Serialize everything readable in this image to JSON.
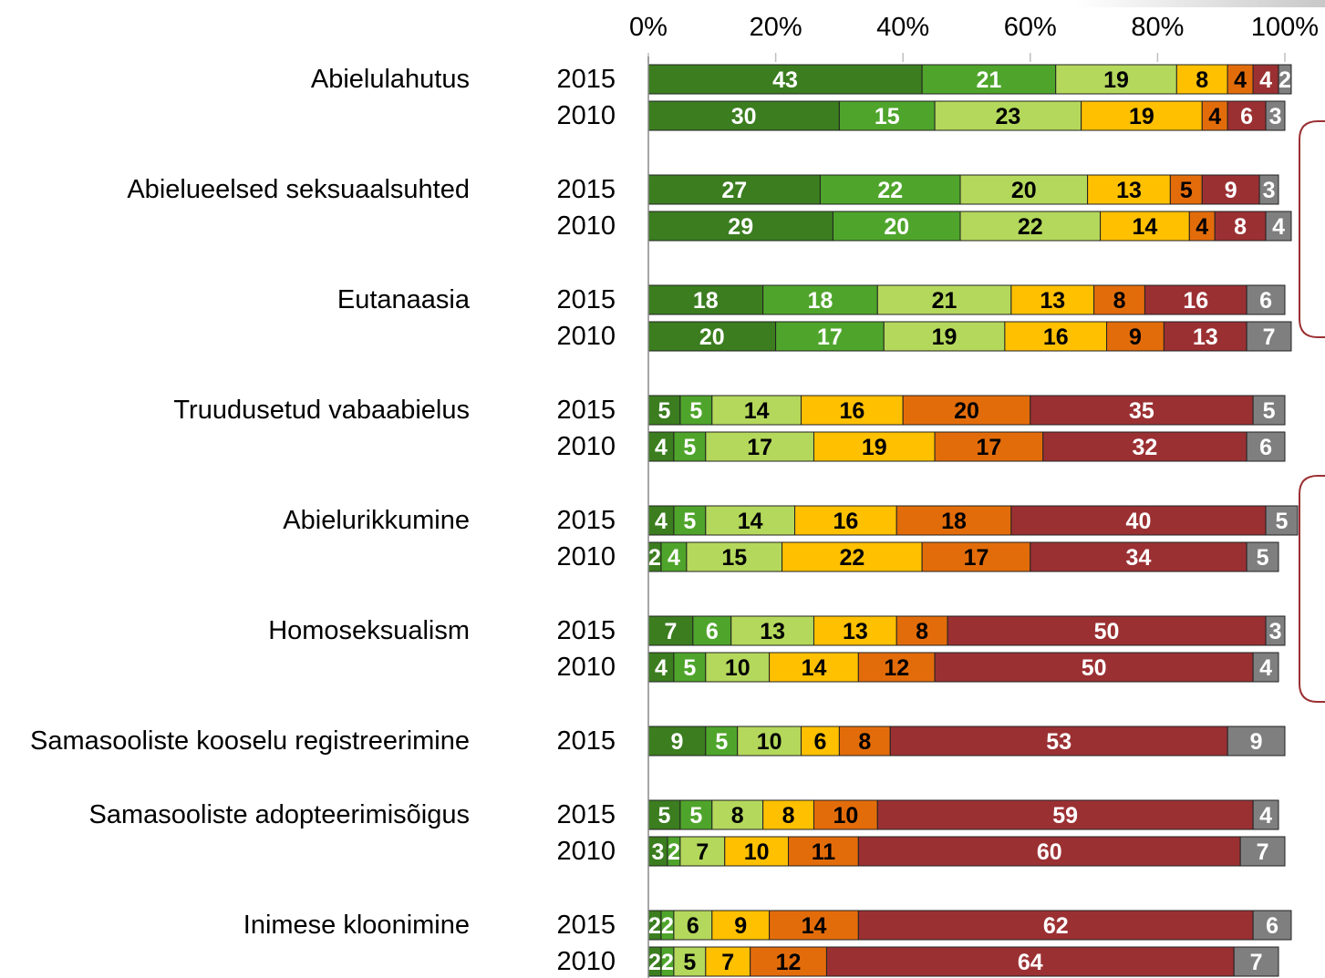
{
  "chart_data": {
    "type": "stacked-bar",
    "xlim": [
      0,
      100
    ],
    "xticks": [
      {
        "value": 0,
        "label": "0%"
      },
      {
        "value": 20,
        "label": "20%"
      },
      {
        "value": 40,
        "label": "40%"
      },
      {
        "value": 60,
        "label": "60%"
      },
      {
        "value": 80,
        "label": "80%"
      },
      {
        "value": 100,
        "label": "100%"
      }
    ],
    "colors": [
      "#3b7d1f",
      "#4fa52b",
      "#b4d85c",
      "#ffc000",
      "#e36c0a",
      "#9b3033",
      "#7f7f7f"
    ],
    "label_colors": [
      "#ffffff",
      "#ffffff",
      "#000000",
      "#000000",
      "#000000",
      "#ffffff",
      "#ffffff"
    ],
    "groups": [
      {
        "label": "Abielulahutus",
        "bars": [
          {
            "year": "2015",
            "values": [
              43,
              21,
              19,
              8,
              4,
              4,
              2
            ]
          },
          {
            "year": "2010",
            "values": [
              30,
              15,
              23,
              19,
              4,
              6,
              3
            ]
          }
        ]
      },
      {
        "label": "Abielueelsed seksuaalsuhted",
        "bars": [
          {
            "year": "2015",
            "values": [
              27,
              22,
              20,
              13,
              5,
              9,
              3
            ]
          },
          {
            "year": "2010",
            "values": [
              29,
              20,
              22,
              14,
              4,
              8,
              4
            ]
          }
        ]
      },
      {
        "label": "Eutanaasia",
        "bars": [
          {
            "year": "2015",
            "values": [
              18,
              18,
              21,
              13,
              8,
              16,
              6
            ]
          },
          {
            "year": "2010",
            "values": [
              20,
              17,
              19,
              16,
              9,
              13,
              7
            ]
          }
        ]
      },
      {
        "label": "Truudusetud vabaabielus",
        "bars": [
          {
            "year": "2015",
            "values": [
              5,
              5,
              14,
              16,
              20,
              35,
              5
            ]
          },
          {
            "year": "2010",
            "values": [
              4,
              5,
              17,
              19,
              17,
              32,
              6
            ]
          }
        ]
      },
      {
        "label": "Abielurikkumine",
        "bars": [
          {
            "year": "2015",
            "values": [
              4,
              5,
              14,
              16,
              18,
              40,
              5
            ]
          },
          {
            "year": "2010",
            "values": [
              2,
              4,
              15,
              22,
              17,
              34,
              5
            ]
          }
        ]
      },
      {
        "label": "Homoseksualism",
        "bars": [
          {
            "year": "2015",
            "values": [
              7,
              6,
              13,
              13,
              8,
              50,
              3
            ]
          },
          {
            "year": "2010",
            "values": [
              4,
              5,
              10,
              14,
              12,
              50,
              4
            ]
          }
        ]
      },
      {
        "label": "Samasooliste kooselu registreerimine",
        "bars": [
          {
            "year": "2015",
            "values": [
              9,
              5,
              10,
              6,
              8,
              53,
              9
            ]
          }
        ]
      },
      {
        "label": "Samasooliste adopteerimisõigus",
        "bars": [
          {
            "year": "2015",
            "values": [
              5,
              5,
              8,
              8,
              10,
              59,
              4
            ]
          },
          {
            "year": "2010",
            "values": [
              3,
              2,
              7,
              10,
              11,
              60,
              7
            ]
          }
        ]
      },
      {
        "label": "Inimese kloonimine",
        "bars": [
          {
            "year": "2015",
            "values": [
              2,
              2,
              6,
              9,
              14,
              62,
              6
            ]
          },
          {
            "year": "2010",
            "values": [
              2,
              2,
              5,
              7,
              12,
              64,
              7
            ]
          }
        ]
      }
    ]
  }
}
